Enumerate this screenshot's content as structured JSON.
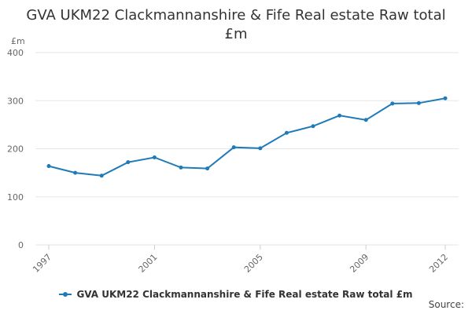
{
  "title_line1": "GVA UKM22 Clackmannanshire & Fife Real estate Raw total",
  "title_line2": "£m",
  "source_label": "Source:",
  "colors": {
    "series": "#1f7ab8",
    "grid": "#e6e6e6",
    "axis_text": "#666666"
  },
  "chart_data": {
    "type": "line",
    "title": "GVA UKM22 Clackmannanshire & Fife Real estate Raw total £m",
    "ylabel": "£m",
    "xlabel": "",
    "ylim": [
      0,
      400
    ],
    "yticks": [
      0,
      100,
      200,
      300,
      400
    ],
    "xticks": [
      1997,
      2001,
      2005,
      2009,
      2012
    ],
    "grid": true,
    "legend_position": "bottom",
    "x": [
      1997,
      1998,
      1999,
      2000,
      2001,
      2002,
      2003,
      2004,
      2005,
      2006,
      2007,
      2008,
      2009,
      2010,
      2011,
      2012
    ],
    "series": [
      {
        "name": "GVA UKM22 Clackmannanshire & Fife Real estate Raw total £m",
        "values": [
          164,
          150,
          144,
          172,
          182,
          161,
          159,
          203,
          201,
          233,
          247,
          269,
          260,
          294,
          295,
          305
        ]
      }
    ]
  }
}
